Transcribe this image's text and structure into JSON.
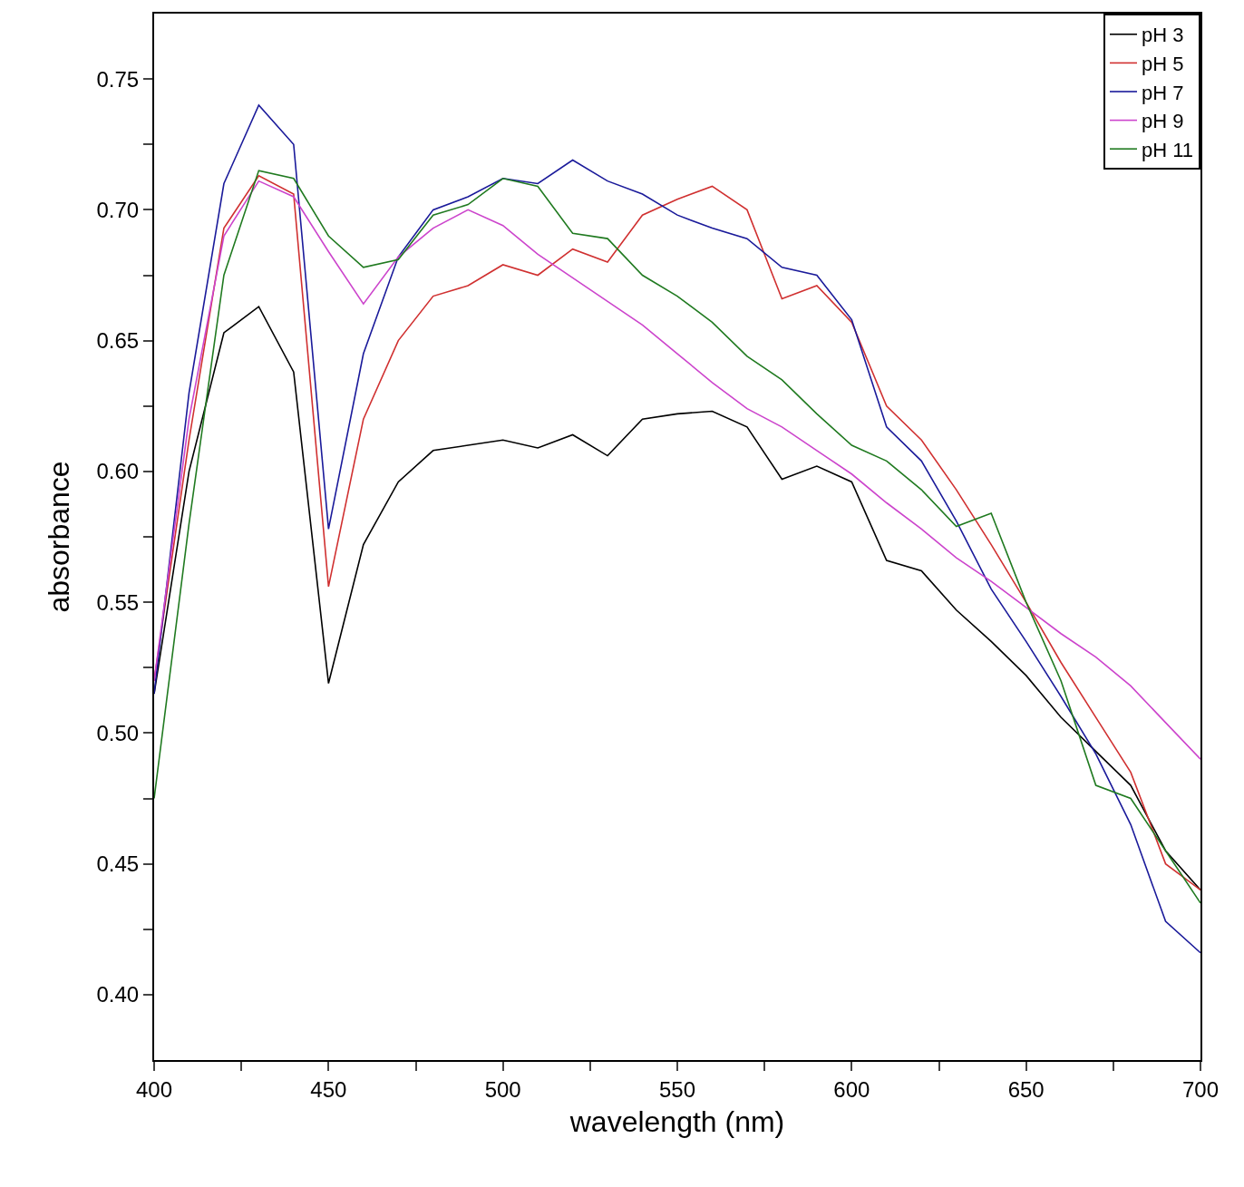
{
  "chart_data": {
    "type": "line",
    "xlabel": "wavelength (nm)",
    "ylabel": "absorbance",
    "x": [
      400,
      410,
      420,
      430,
      440,
      450,
      460,
      470,
      480,
      490,
      500,
      510,
      520,
      530,
      540,
      550,
      560,
      570,
      580,
      590,
      600,
      610,
      620,
      630,
      640,
      650,
      660,
      670,
      680,
      690,
      700
    ],
    "series": [
      {
        "name": "pH 3",
        "color": "#000000",
        "values": [
          0.515,
          0.6,
          0.653,
          0.663,
          0.638,
          0.519,
          0.572,
          0.596,
          0.608,
          0.61,
          0.612,
          0.609,
          0.614,
          0.606,
          0.62,
          0.622,
          0.623,
          0.617,
          0.597,
          0.602,
          0.596,
          0.566,
          0.562,
          0.547,
          0.535,
          0.522,
          0.506,
          0.493,
          0.48,
          0.455,
          0.44
        ]
      },
      {
        "name": "pH 5",
        "color": "#d03030",
        "values": [
          0.52,
          0.612,
          0.693,
          0.713,
          0.706,
          0.556,
          0.62,
          0.65,
          0.667,
          0.671,
          0.679,
          0.675,
          0.685,
          0.68,
          0.698,
          0.704,
          0.709,
          0.7,
          0.666,
          0.671,
          0.657,
          0.625,
          0.612,
          0.593,
          0.572,
          0.55,
          0.527,
          0.506,
          0.485,
          0.45,
          0.44
        ]
      },
      {
        "name": "pH 7",
        "color": "#1a1a9a",
        "values": [
          0.515,
          0.63,
          0.71,
          0.74,
          0.725,
          0.578,
          0.645,
          0.682,
          0.7,
          0.705,
          0.712,
          0.71,
          0.719,
          0.711,
          0.706,
          0.698,
          0.693,
          0.689,
          0.678,
          0.675,
          0.658,
          0.617,
          0.604,
          0.581,
          0.555,
          0.535,
          0.514,
          0.492,
          0.465,
          0.428,
          0.416
        ]
      },
      {
        "name": "pH 9",
        "color": "#cc44cc",
        "values": [
          0.52,
          0.62,
          0.69,
          0.711,
          0.705,
          0.684,
          0.664,
          0.682,
          0.693,
          0.7,
          0.694,
          0.683,
          0.674,
          0.665,
          0.656,
          0.645,
          0.634,
          0.624,
          0.617,
          0.608,
          0.599,
          0.588,
          0.578,
          0.567,
          0.558,
          0.548,
          0.538,
          0.529,
          0.518,
          0.504,
          0.49
        ]
      },
      {
        "name": "pH 11",
        "color": "#207a20",
        "values": [
          0.475,
          0.58,
          0.675,
          0.715,
          0.712,
          0.69,
          0.678,
          0.681,
          0.698,
          0.702,
          0.712,
          0.709,
          0.691,
          0.689,
          0.675,
          0.667,
          0.657,
          0.644,
          0.635,
          0.622,
          0.61,
          0.604,
          0.593,
          0.579,
          0.584,
          0.55,
          0.52,
          0.48,
          0.475,
          0.455,
          0.435
        ]
      }
    ],
    "xlim": [
      400,
      700
    ],
    "xticks": [
      400,
      {
        "value": 425,
        "label": null
      },
      450,
      {
        "value": 475,
        "label": null
      },
      500,
      {
        "value": 525,
        "label": null
      },
      550,
      {
        "value": 575,
        "label": null
      },
      600,
      {
        "value": 625,
        "label": null
      },
      650,
      {
        "value": 675,
        "label": null
      },
      700
    ],
    "ylim": [
      0.375,
      0.775
    ],
    "yticks": [
      {
        "value": 0.4,
        "label": "0.40"
      },
      {
        "value": 0.425,
        "label": null
      },
      {
        "value": 0.45,
        "label": "0.45"
      },
      {
        "value": 0.475,
        "label": null
      },
      {
        "value": 0.5,
        "label": "0.50"
      },
      {
        "value": 0.525,
        "label": null
      },
      {
        "value": 0.55,
        "label": "0.55"
      },
      {
        "value": 0.575,
        "label": null
      },
      {
        "value": 0.6,
        "label": "0.60"
      },
      {
        "value": 0.625,
        "label": null
      },
      {
        "value": 0.65,
        "label": "0.65"
      },
      {
        "value": 0.675,
        "label": null
      },
      {
        "value": 0.7,
        "label": "0.70"
      },
      {
        "value": 0.725,
        "label": null
      },
      {
        "value": 0.75,
        "label": "0.75"
      }
    ],
    "grid": false,
    "legend": "top right",
    "marker": "none",
    "line_style": "solid"
  }
}
